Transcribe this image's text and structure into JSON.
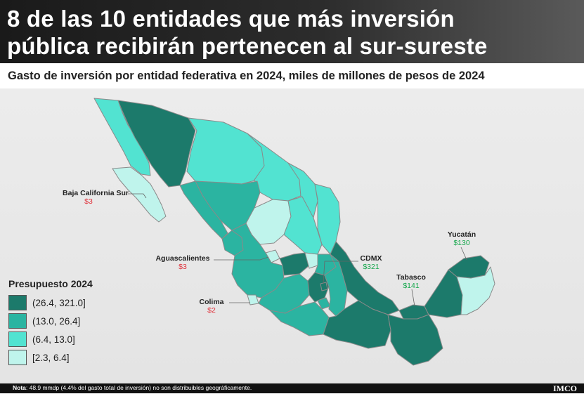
{
  "header": {
    "title_line1": "8 de las 10 entidades que más inversión",
    "title_line2": "pública recibirán pertenecen al sur-sureste"
  },
  "subtitle": "Gasto de inversión por entidad federativa en 2024, miles de millones de pesos de 2024",
  "legend": {
    "title": "Presupuesto 2024",
    "items": [
      {
        "range": "(26.4, 321.0]",
        "color": "#1c7a6b"
      },
      {
        "range": "(13.0, 26.4]",
        "color": "#2bb4a1"
      },
      {
        "range": "(6.4, 13.0]",
        "color": "#52e3d1"
      },
      {
        "range": "[2.3, 6.4]",
        "color": "#bff4ec"
      }
    ]
  },
  "annotations": [
    {
      "state": "Baja California  Sur",
      "value": "$3",
      "value_color": "#e0303a"
    },
    {
      "state": "Aguascalientes",
      "value": "$3",
      "value_color": "#e0303a"
    },
    {
      "state": "Colima",
      "value": "$2",
      "value_color": "#e0303a"
    },
    {
      "state": "CDMX",
      "value": "$321",
      "value_color": "#18a84e"
    },
    {
      "state": "Tabasco",
      "value": "$141",
      "value_color": "#18a84e"
    },
    {
      "state": "Yucatán",
      "value": "$130",
      "value_color": "#18a84e"
    }
  ],
  "footer": {
    "note_label": "Nota",
    "note_text": ": 48.9 mmdp (4.4% del gasto total de inversión) no son distribuibles geográficamente.",
    "logo": "IMCO"
  },
  "colors": {
    "header_bg": "#1f1f1f",
    "map_bg": "#e8e8e8",
    "border": "#8a8a8a",
    "low_value": "#e0303a",
    "high_value": "#18a84e"
  }
}
